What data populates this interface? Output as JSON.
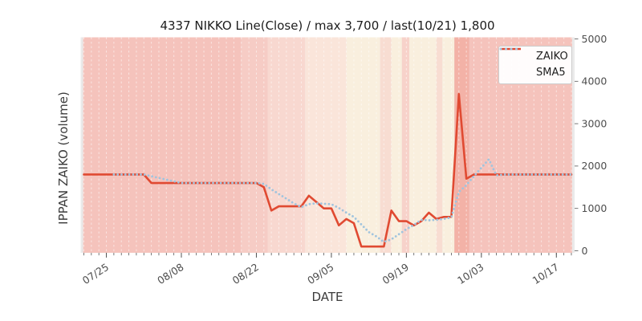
{
  "chart_data": {
    "type": "line",
    "title": "4337 NIKKO Line(Close) / max 3,700 / last(10/21) 1,800",
    "xlabel": "DATE",
    "ylabel": "IPPAN ZAIKO (volume)",
    "ylim": [
      0,
      5000
    ],
    "yticks": [
      0,
      1000,
      2000,
      3000,
      4000,
      5000
    ],
    "xticks": {
      "indices": [
        3,
        13,
        23,
        33,
        43,
        53,
        63
      ],
      "labels": [
        "07/25",
        "08/08",
        "08/22",
        "09/05",
        "09/19",
        "10/03",
        "10/17"
      ]
    },
    "grid": "vertical daily white dashed lines, no horizontal grid",
    "legend": {
      "position": "upper right",
      "entries": [
        {
          "label": "ZAIKO",
          "color": "#e04a32",
          "style": "solid"
        },
        {
          "label": "SMA5",
          "color": "#a0c4de",
          "style": "dotted"
        }
      ]
    },
    "series": [
      {
        "name": "ZAIKO",
        "color": "#e04a32",
        "dates": [
          "07/22",
          "07/23",
          "07/24",
          "07/25",
          "07/28",
          "07/29",
          "07/30",
          "07/31",
          "08/01",
          "08/04",
          "08/05",
          "08/06",
          "08/07",
          "08/08",
          "08/11",
          "08/12",
          "08/13",
          "08/14",
          "08/15",
          "08/18",
          "08/19",
          "08/20",
          "08/21",
          "08/22",
          "08/25",
          "08/26",
          "08/27",
          "08/28",
          "08/29",
          "09/01",
          "09/02",
          "09/03",
          "09/04",
          "09/05",
          "09/08",
          "09/09",
          "09/10",
          "09/11",
          "09/12",
          "09/15",
          "09/16",
          "09/17",
          "09/18",
          "09/19",
          "09/22",
          "09/23",
          "09/24",
          "09/25",
          "09/26",
          "09/29",
          "09/30",
          "10/01",
          "10/02",
          "10/03",
          "10/06",
          "10/07",
          "10/08",
          "10/09",
          "10/10",
          "10/13",
          "10/14",
          "10/15",
          "10/16",
          "10/17",
          "10/20",
          "10/21"
        ],
        "values": [
          1800,
          1800,
          1800,
          1800,
          1800,
          1800,
          1800,
          1800,
          1800,
          1600,
          1600,
          1600,
          1600,
          1600,
          1600,
          1600,
          1600,
          1600,
          1600,
          1600,
          1600,
          1600,
          1600,
          1600,
          1500,
          950,
          1050,
          1050,
          1050,
          1050,
          1300,
          1150,
          1000,
          1000,
          600,
          750,
          650,
          100,
          100,
          100,
          100,
          950,
          700,
          700,
          600,
          700,
          900,
          750,
          800,
          800,
          3700,
          1700,
          1800,
          1800,
          1800,
          1800,
          1800,
          1800,
          1800,
          1800,
          1800,
          1800,
          1800,
          1800,
          1800,
          1800
        ]
      },
      {
        "name": "SMA5",
        "color": "#a0c4de",
        "derived": "5-point simple moving average of ZAIKO"
      }
    ],
    "annotations": {
      "max_value": 3700,
      "last_date": "10/21",
      "last_value": 1800
    },
    "background_bands": [
      {
        "from": -0.1,
        "to": 21,
        "color": "#f5c3bc"
      },
      {
        "from": 21,
        "to": 24.5,
        "color": "#f6ccc5"
      },
      {
        "from": 24.5,
        "to": 29.5,
        "color": "#f8d8d0"
      },
      {
        "from": 29.5,
        "to": 35,
        "color": "#fae5da"
      },
      {
        "from": 35,
        "to": 39.5,
        "color": "#f9efde"
      },
      {
        "from": 39.5,
        "to": 41,
        "color": "#f8ddd2"
      },
      {
        "from": 41,
        "to": 42.4,
        "color": "#f9efde"
      },
      {
        "from": 42.4,
        "to": 43.4,
        "color": "#f7d2ca"
      },
      {
        "from": 43.4,
        "to": 47,
        "color": "#f9efde"
      },
      {
        "from": 47,
        "to": 47.8,
        "color": "#f8ddd2"
      },
      {
        "from": 47.8,
        "to": 49.4,
        "color": "#f9efde"
      },
      {
        "from": 49.4,
        "to": 51.4,
        "color": "#f3b2a7"
      },
      {
        "from": 51.4,
        "to": 65.1,
        "color": "#f5c3bc"
      }
    ],
    "plot_bg_color": "#eaeaea",
    "tick_color": "#555555",
    "tick_label_color": "#4d4d4d"
  }
}
